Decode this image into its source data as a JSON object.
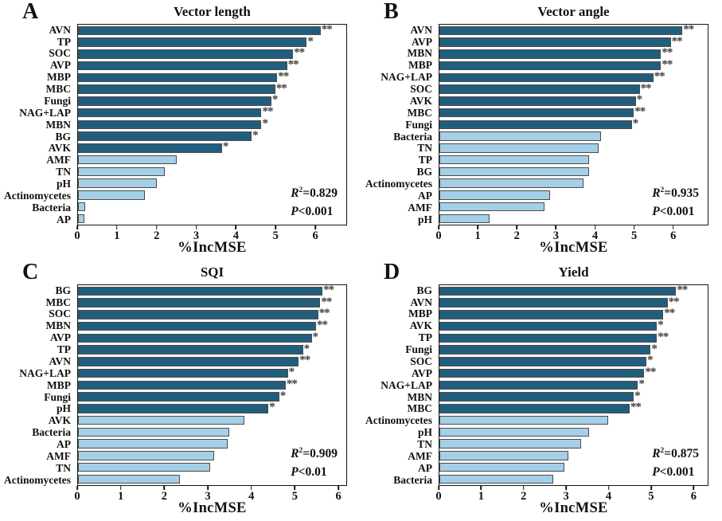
{
  "figure": {
    "background": "#ffffff",
    "colors": {
      "bar_high": "#215e7e",
      "bar_low": "#a4d0e7",
      "bar_border": "#4b4b4b",
      "axis": "#161616",
      "significance_marker": "#3d3d3d"
    }
  },
  "chart_data": [
    {
      "type": "bar",
      "panel": "A",
      "title": "Vector length",
      "orientation": "horizontal",
      "xlabel": "%IncMSE",
      "xlim": [
        0,
        6.8
      ],
      "xticks": [
        0,
        1,
        2,
        3,
        4,
        5,
        6
      ],
      "grid": false,
      "categories": [
        "AVN",
        "TP",
        "SOC",
        "AVP",
        "MBP",
        "MBC",
        "Fungi",
        "NAG+LAP",
        "MBN",
        "BG",
        "AVK",
        "AMF",
        "TN",
        "pH",
        "Actinomycetes",
        "Bacteria",
        "AP"
      ],
      "values": [
        6.15,
        5.8,
        5.45,
        5.3,
        5.05,
        5.0,
        4.9,
        4.65,
        4.65,
        4.4,
        3.65,
        2.5,
        2.2,
        2.0,
        1.7,
        0.18,
        0.16
      ],
      "significance": [
        "**",
        "*",
        "**",
        "**",
        "**",
        "**",
        "*",
        "**",
        "*",
        "*",
        "*",
        "",
        "",
        "",
        "",
        "",
        ""
      ],
      "n_dark": 11,
      "stats": {
        "r_symbol": "R",
        "r_sup": "2",
        "r2_rest": "=0.829",
        "p_symbol": "P",
        "p_rest": "<0.001"
      }
    },
    {
      "type": "bar",
      "panel": "B",
      "title": "Vector angle",
      "orientation": "horizontal",
      "xlabel": "%IncMSE",
      "xlim": [
        0,
        6.9
      ],
      "xticks": [
        0,
        1,
        2,
        3,
        4,
        5,
        6
      ],
      "grid": false,
      "categories": [
        "AVN",
        "AVP",
        "MBN",
        "MBP",
        "NAG+LAP",
        "SOC",
        "AVK",
        "MBC",
        "Fungi",
        "Bacteria",
        "TN",
        "TP",
        "BG",
        "Actinomycetes",
        "AP",
        "AMF",
        "pH"
      ],
      "values": [
        6.25,
        5.95,
        5.7,
        5.7,
        5.5,
        5.15,
        5.05,
        5.0,
        4.95,
        4.15,
        4.1,
        3.85,
        3.85,
        3.7,
        2.85,
        2.7,
        1.3
      ],
      "significance": [
        "**",
        "**",
        "**",
        "**",
        "**",
        "**",
        "*",
        "**",
        "*",
        "",
        "",
        "",
        "",
        "",
        "",
        "",
        ""
      ],
      "n_dark": 9,
      "stats": {
        "r_symbol": "R",
        "r_sup": "2",
        "r2_rest": "=0.935",
        "p_symbol": "P",
        "p_rest": "<0.001"
      }
    },
    {
      "type": "bar",
      "panel": "C",
      "title": "SQI",
      "orientation": "horizontal",
      "xlabel": "%IncMSE",
      "xlim": [
        0,
        6.2
      ],
      "xticks": [
        0,
        1,
        2,
        3,
        4,
        5,
        6
      ],
      "grid": false,
      "categories": [
        "BG",
        "MBC",
        "SOC",
        "MBN",
        "AVP",
        "TP",
        "AVN",
        "NAG+LAP",
        "MBP",
        "Fungi",
        "pH",
        "AVK",
        "Bacteria",
        "AP",
        "AMF",
        "TN",
        "Actinomycetes"
      ],
      "values": [
        5.65,
        5.6,
        5.55,
        5.5,
        5.4,
        5.2,
        5.1,
        4.85,
        4.8,
        4.65,
        4.4,
        3.85,
        3.5,
        3.45,
        3.15,
        3.05,
        2.35
      ],
      "significance": [
        "**",
        "**",
        "**",
        "**",
        "*",
        "*",
        "**",
        "*",
        "**",
        "*",
        "*",
        "",
        "",
        "",
        "",
        "",
        ""
      ],
      "n_dark": 11,
      "stats": {
        "r_symbol": "R",
        "r_sup": "2",
        "r2_rest": "=0.909",
        "p_symbol": "P",
        "p_rest": "<0.01"
      }
    },
    {
      "type": "bar",
      "panel": "D",
      "title": "Yield",
      "orientation": "horizontal",
      "xlabel": "%IncMSE",
      "xlim": [
        0,
        6.35
      ],
      "xticks": [
        0,
        1,
        2,
        3,
        4,
        5,
        6
      ],
      "grid": false,
      "categories": [
        "BG",
        "AVN",
        "MBP",
        "AVK",
        "TP",
        "Fungi",
        "SOC",
        "AVP",
        "NAG+LAP",
        "MBN",
        "MBC",
        "Actinomycetes",
        "pH",
        "TN",
        "AMF",
        "AP",
        "Bacteria"
      ],
      "values": [
        5.6,
        5.4,
        5.3,
        5.15,
        5.15,
        5.0,
        4.9,
        4.85,
        4.7,
        4.6,
        4.5,
        4.0,
        3.55,
        3.35,
        3.05,
        2.95,
        2.7
      ],
      "significance": [
        "**",
        "**",
        "**",
        "*",
        "**",
        "*",
        "*",
        "**",
        "*",
        "*",
        "**",
        "",
        "",
        "",
        "",
        "",
        ""
      ],
      "n_dark": 11,
      "stats": {
        "r_symbol": "R",
        "r_sup": "2",
        "r2_rest": "=0.875",
        "p_symbol": "P",
        "p_rest": "<0.001"
      }
    }
  ]
}
